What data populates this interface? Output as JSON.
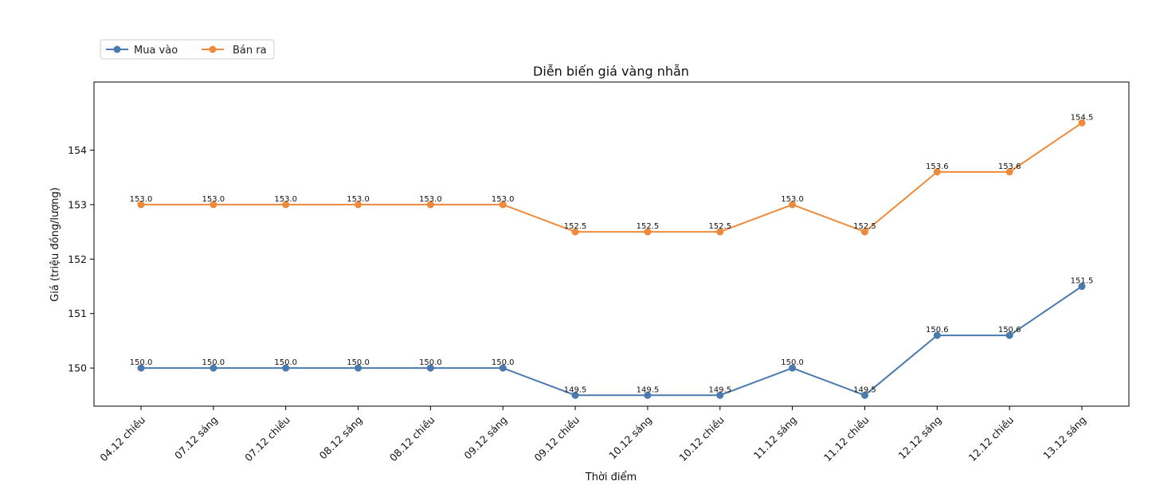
{
  "chart_data": {
    "type": "line",
    "title": "Diễn biến giá vàng nhẫn",
    "xlabel": "Thời điểm",
    "ylabel": "Giá (triệu đồng/lượng)",
    "ylim": [
      149.3,
      155.25
    ],
    "yticks": [
      150,
      151,
      152,
      153,
      154
    ],
    "legend_position": "top-left",
    "categories": [
      "04.12 chiều",
      "07.12 sáng",
      "07.12 chiều",
      "08.12 sáng",
      "08.12 chiều",
      "09.12 sáng",
      "09.12 chiều",
      "10.12 sáng",
      "10.12 chiều",
      "11.12 sáng",
      "11.12 chiều",
      "12.12 sáng",
      "12.12 chiều",
      "13.12 sáng"
    ],
    "series": [
      {
        "name": "Mua vào",
        "color": "#4a7aae",
        "values": [
          150.0,
          150.0,
          150.0,
          150.0,
          150.0,
          150.0,
          149.5,
          149.5,
          149.5,
          150.0,
          149.5,
          150.6,
          150.6,
          151.5
        ]
      },
      {
        "name": "Bán ra",
        "color": "#ee8a3c",
        "values": [
          153.0,
          153.0,
          153.0,
          153.0,
          153.0,
          153.0,
          152.5,
          152.5,
          152.5,
          153.0,
          152.5,
          153.6,
          153.6,
          154.5
        ]
      }
    ]
  }
}
